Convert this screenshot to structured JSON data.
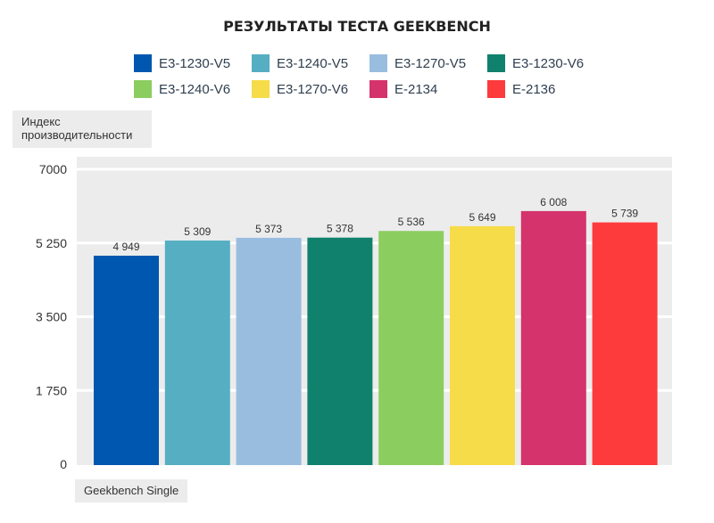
{
  "colors": {
    "plot_bg": "#ececec",
    "grid": "#ffffff",
    "text": "#333333"
  },
  "chart_data": {
    "type": "bar",
    "title": "РЕЗУЛЬТАТЫ ТЕСТА GEEKBENCH",
    "ylabel": "Индекс производительности",
    "xlabel": "Geekbench Single",
    "ylim": [
      0,
      7000
    ],
    "yticks": [
      0,
      1750,
      3500,
      5250,
      7000
    ],
    "ytick_labels": [
      "0",
      "1 750",
      "3 500",
      "5 250",
      "7000"
    ],
    "series": [
      {
        "name": "E3-1230-V5",
        "value": 4949,
        "label": "4 949",
        "color": "#0057b0"
      },
      {
        "name": "E3-1240-V5",
        "value": 5309,
        "label": "5 309",
        "color": "#56aec3"
      },
      {
        "name": "E3-1270-V5",
        "value": 5373,
        "label": "5 373",
        "color": "#99bddf"
      },
      {
        "name": "E3-1230-V6",
        "value": 5378,
        "label": "5 378",
        "color": "#10816c"
      },
      {
        "name": "E3-1240-V6",
        "value": 5536,
        "label": "5 536",
        "color": "#8ccd5f"
      },
      {
        "name": "E3-1270-V6",
        "value": 5649,
        "label": "5 649",
        "color": "#f6dc48"
      },
      {
        "name": "E-2134",
        "value": 6008,
        "label": "6 008",
        "color": "#d4336b"
      },
      {
        "name": "E-2136",
        "value": 5739,
        "label": "5 739",
        "color": "#fd3a3c"
      }
    ]
  }
}
